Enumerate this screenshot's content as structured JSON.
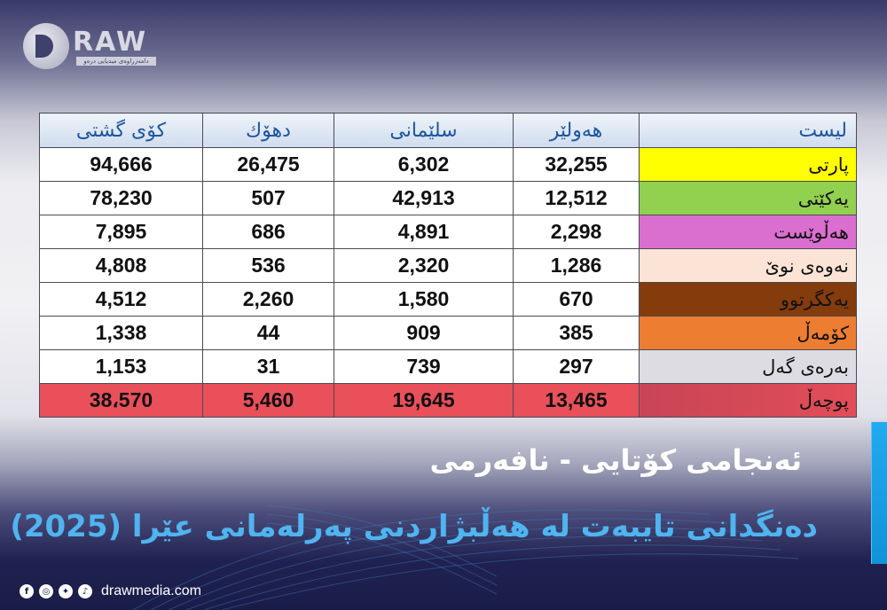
{
  "brand": {
    "logo_text": "RAW",
    "logo_tagline": "دامەزراوەی میدیایی درەو",
    "website": "drawmedia.com",
    "social_icons": [
      "facebook-icon",
      "instagram-icon",
      "twitter-icon",
      "tiktok-icon"
    ]
  },
  "table": {
    "headers": {
      "list": "لیست",
      "erbil": "هەولێر",
      "sulaimani": "سلێمانی",
      "duhok": "دهۆك",
      "total": "کۆی گشتی"
    },
    "rows": [
      {
        "party": "پارتی",
        "color": "#ffff00",
        "text_color": "#111111",
        "erbil": "32,255",
        "sulaimani": "6,302",
        "duhok": "26,475",
        "total": "94,666"
      },
      {
        "party": "یەکێتی",
        "color": "#92d050",
        "text_color": "#111111",
        "erbil": "12,512",
        "sulaimani": "42,913",
        "duhok": "507",
        "total": "78,230"
      },
      {
        "party": "هەڵوێست",
        "color": "#da6fd0",
        "text_color": "#111111",
        "erbil": "2,298",
        "sulaimani": "4,891",
        "duhok": "686",
        "total": "7,895"
      },
      {
        "party": "نەوەی نوێ",
        "color": "#fbe4d5",
        "text_color": "#111111",
        "erbil": "1,286",
        "sulaimani": "2,320",
        "duhok": "536",
        "total": "4,808"
      },
      {
        "party": "یەکگرتوو",
        "color": "#843c0c",
        "text_color": "#111111",
        "erbil": "670",
        "sulaimani": "1,580",
        "duhok": "2,260",
        "total": "4,512"
      },
      {
        "party": "کۆمەڵ",
        "color": "#ed7d31",
        "text_color": "#111111",
        "erbil": "385",
        "sulaimani": "909",
        "duhok": "44",
        "total": "1,338"
      },
      {
        "party": "بەرەی گەل",
        "color": "#dcdce2",
        "text_color": "#111111",
        "erbil": "297",
        "sulaimani": "739",
        "duhok": "31",
        "total": "1,153"
      },
      {
        "party": "پوچەڵ",
        "color": "#e24d58",
        "text_color": "#111111",
        "erbil": "13,465",
        "sulaimani": "19,645",
        "duhok": "5,460",
        "total": "38،570"
      }
    ]
  },
  "subtitle": "ئەنجامی کۆتایی - نافەرمی",
  "title": "دەنگدانی تایبەت لە هەڵبژاردنی پەرلەمانی عێرا (2025)",
  "colors": {
    "title_blue": "#4fb4ef",
    "header_text": "#1e55a0",
    "void_row": "#e9505a",
    "accent_bar": "#21aaf0"
  }
}
